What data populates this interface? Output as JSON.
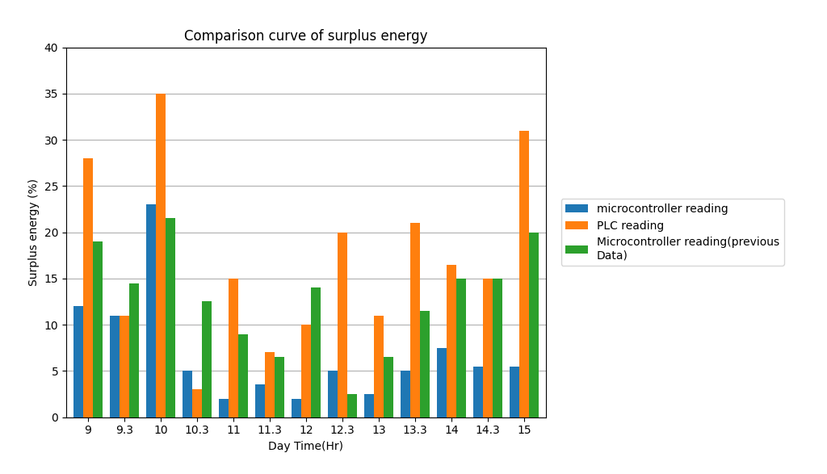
{
  "chart_data": {
    "type": "bar",
    "title": "Comparison curve of surplus energy",
    "xlabel": "Day Time(Hr)",
    "ylabel": "Surplus energy (%)",
    "categories": [
      "9",
      "9.3",
      "10",
      "10.3",
      "11",
      "11.3",
      "12",
      "12.3",
      "13",
      "13.3",
      "14",
      "14.3",
      "15"
    ],
    "series": [
      {
        "name": "microcontroller reading",
        "values": [
          12,
          11,
          23,
          5,
          2,
          3.5,
          2,
          5,
          2.5,
          5,
          7.5,
          5.5,
          5.5
        ]
      },
      {
        "name": "PLC reading",
        "values": [
          28,
          11,
          35,
          3,
          15,
          7,
          10,
          20,
          11,
          21,
          16.5,
          15,
          31
        ]
      },
      {
        "name": "Microcontroller reading(previous\nData)",
        "values": [
          19,
          14.5,
          21.5,
          12.5,
          9,
          6.5,
          14,
          2.5,
          6.5,
          11.5,
          15,
          15,
          20
        ]
      }
    ],
    "ylim": [
      0,
      40
    ],
    "yticks": [
      0,
      5,
      10,
      15,
      20,
      25,
      30,
      35,
      40
    ],
    "grid": true,
    "legend": "right"
  }
}
